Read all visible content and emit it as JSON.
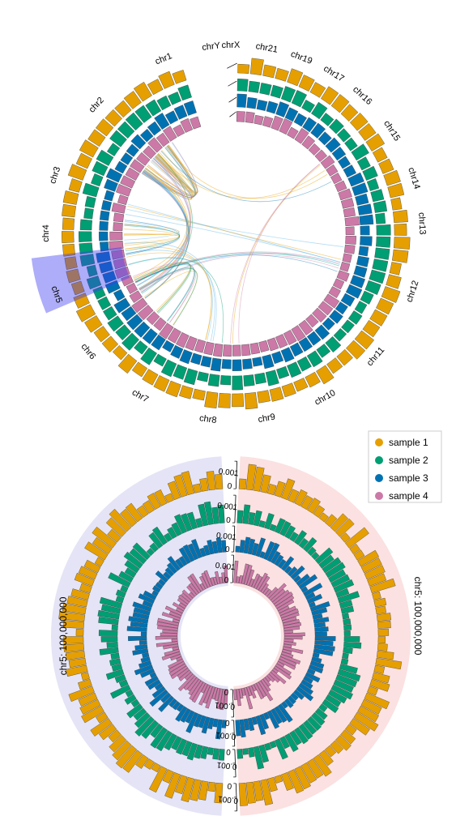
{
  "chart_data": [
    {
      "type": "circos",
      "chromosomes": [
        "chr1",
        "chr2",
        "chr3",
        "chr4",
        "chr5",
        "chr6",
        "chr7",
        "chr8",
        "chr9",
        "chr10",
        "chr11",
        "chr12",
        "chr13",
        "chr14",
        "chr15",
        "chr16",
        "chr17",
        "chr19",
        "chr21",
        "chrX",
        "chrY"
      ],
      "highlighted_chromosome": "chr5",
      "tracks": [
        "sample 1",
        "sample 2",
        "sample 3",
        "sample 4"
      ],
      "links": "inter/intra-chromosomal arcs"
    },
    {
      "type": "bar",
      "layout": "radial",
      "series": [
        {
          "name": "sample 1",
          "color": "#E69F00"
        },
        {
          "name": "sample 2",
          "color": "#009E73"
        },
        {
          "name": "sample 3",
          "color": "#0072B2"
        },
        {
          "name": "sample 4",
          "color": "#CC79A7"
        }
      ],
      "left_label": "chr5: 100,000,000",
      "right_label": "chr5: 100,000,000",
      "tick_values": [
        "0.001",
        "0"
      ],
      "legend": "top-right"
    }
  ],
  "legend": {
    "items": [
      {
        "label": "sample 1",
        "color": "#E69F00"
      },
      {
        "label": "sample 2",
        "color": "#009E73"
      },
      {
        "label": "sample 3",
        "color": "#0072B2"
      },
      {
        "label": "sample 4",
        "color": "#CC79A7"
      }
    ]
  },
  "labels": {
    "left": "chr5: 100,000,000",
    "right": "chr5: 100,000,000",
    "tick_top": "0.001",
    "tick_zero": "0"
  }
}
